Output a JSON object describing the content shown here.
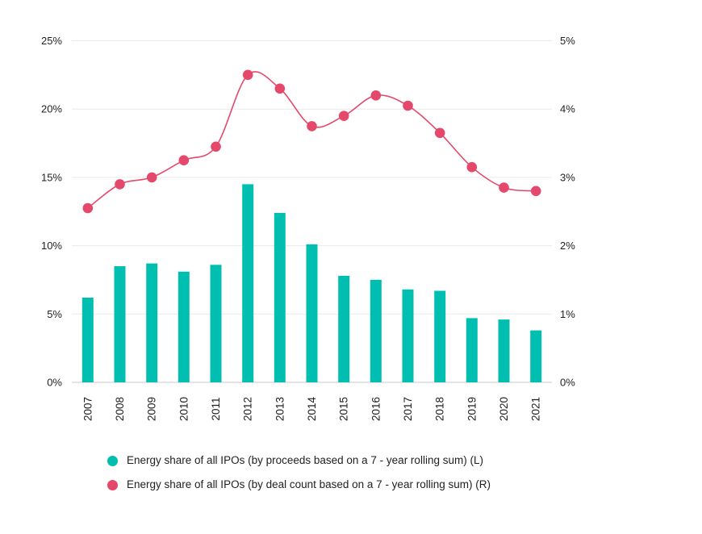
{
  "page": {
    "background": "#ffffff"
  },
  "chart_data": {
    "type": "bar+line",
    "categories": [
      "2007",
      "2008",
      "2009",
      "2010",
      "2011",
      "2012",
      "2013",
      "2014",
      "2015",
      "2016",
      "2017",
      "2018",
      "2019",
      "2020",
      "2021"
    ],
    "series": [
      {
        "name": "Energy share of all IPOs (by proceeds based on a 7 - year rolling sum) (L)",
        "type": "bar",
        "axis": "left",
        "color": "#00BFB0",
        "values": [
          6.2,
          8.5,
          8.7,
          8.1,
          8.6,
          14.5,
          12.4,
          10.1,
          7.8,
          7.5,
          6.8,
          6.7,
          4.7,
          4.6,
          3.8
        ]
      },
      {
        "name": "Energy share of all IPOs (by deal count based on a 7 - year rolling sum) (R)",
        "type": "line",
        "axis": "right",
        "color": "#E4486B",
        "values": [
          2.55,
          2.9,
          3.0,
          3.25,
          3.45,
          4.5,
          4.3,
          3.75,
          3.9,
          4.2,
          4.05,
          3.65,
          3.15,
          2.85,
          2.8
        ]
      }
    ],
    "left_axis": {
      "min": 0,
      "max": 25,
      "tick_labels": [
        "0%",
        "5%",
        "10%",
        "15%",
        "20%",
        "25%"
      ]
    },
    "right_axis": {
      "min": 0,
      "max": 5,
      "tick_labels": [
        "0%",
        "1%",
        "2%",
        "3%",
        "4%",
        "5%"
      ]
    },
    "grid": true,
    "legend_position": "bottom-left"
  },
  "colors": {
    "gridline": "#EAEAEA",
    "baseline": "#C8C8C8",
    "axis_text": "#1F1F1F"
  }
}
